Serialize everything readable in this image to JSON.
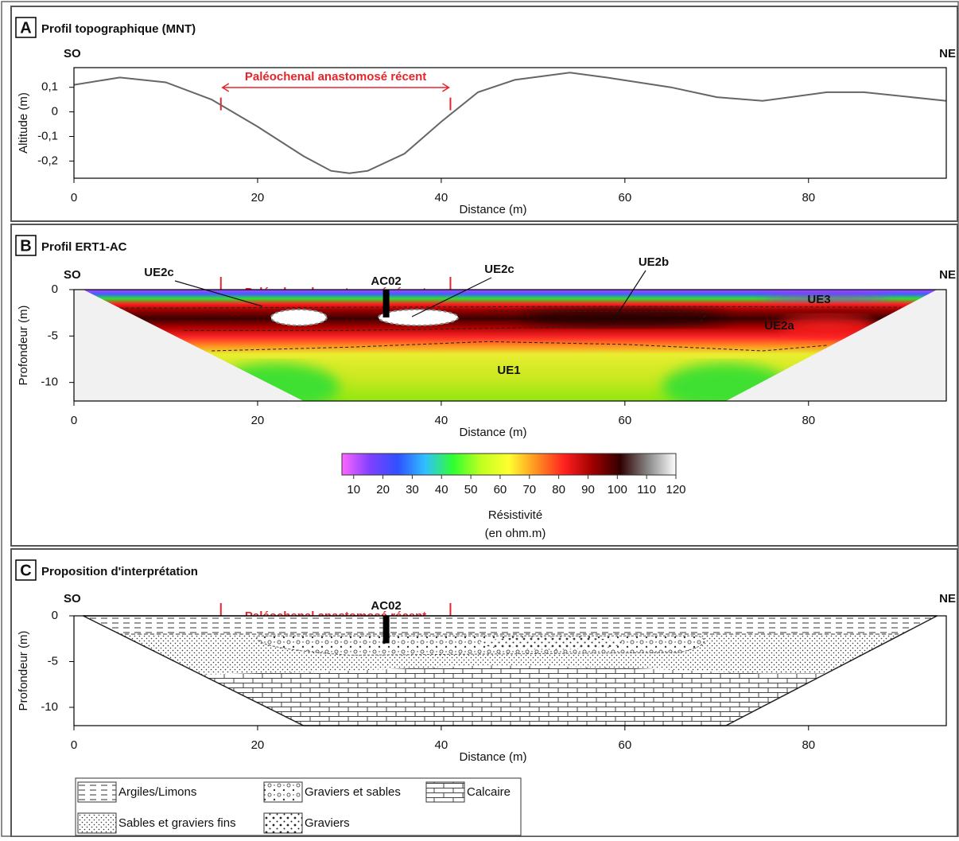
{
  "chart_data": [
    {
      "type": "line",
      "panel": "A",
      "title": "Profil topographique (MNT)",
      "left_label": "SO",
      "right_label": "NE",
      "annotation": "Paléochenal anastomosé récent",
      "annotation_range": [
        16,
        41
      ],
      "x_label": "Distance (m)",
      "y_label": "Altitude (m)",
      "color": "#666666",
      "x": [
        0,
        5,
        10,
        15,
        20,
        25,
        28,
        30,
        32,
        36,
        40,
        44,
        48,
        54,
        58,
        65,
        70,
        75,
        78,
        82,
        86,
        95
      ],
      "values": [
        0.11,
        0.14,
        0.12,
        0.05,
        -0.06,
        -0.18,
        -0.24,
        -0.25,
        -0.24,
        -0.17,
        -0.04,
        0.08,
        0.13,
        0.16,
        0.14,
        0.1,
        0.06,
        0.045,
        0.06,
        0.08,
        0.08,
        0.045
      ],
      "xlim": [
        0,
        95
      ],
      "ylim": [
        -0.27,
        0.18
      ],
      "xticks": [
        0,
        20,
        40,
        60,
        80
      ],
      "yticks": [
        {
          "value": 0.1,
          "label": "0,1"
        },
        0,
        {
          "value": -0.1,
          "label": "-0,1"
        },
        {
          "value": -0.2,
          "label": "-0,2"
        }
      ]
    },
    {
      "type": "resistivity",
      "panel": "B",
      "title": "Profil ERT1-AC",
      "left_label": "SO",
      "right_label": "NE",
      "annotation": "Paléochenal anastomosé récent",
      "annotation_range": [
        16,
        41
      ],
      "x_label": "Distance (m)",
      "y_label": "Profondeur (m)",
      "borehole": {
        "name": "AC02",
        "x": 34,
        "depth": -3
      },
      "units": [
        "UE2c",
        "UE2c",
        "UE2b",
        "UE3",
        "UE2a",
        "UE1"
      ],
      "xlim": [
        0,
        95
      ],
      "ylim": [
        -12,
        0
      ],
      "xticks": [
        0,
        20,
        40,
        60,
        80
      ],
      "yticks": [
        0,
        -5,
        -10
      ],
      "colorbar": {
        "lim": [
          6,
          120
        ],
        "ticks": [
          10,
          20,
          30,
          40,
          50,
          60,
          70,
          80,
          90,
          100,
          110,
          120
        ],
        "label": "Résistivité",
        "unit": "(en ohm.m)",
        "colors": [
          "#ff66ff",
          "#8040ff",
          "#3050ff",
          "#30c0ff",
          "#30ff30",
          "#c0ff20",
          "#ffff30",
          "#ff9020",
          "#ff2020",
          "#a00000",
          "#300000",
          "#888888",
          "#ffffff"
        ]
      }
    },
    {
      "type": "interpretation",
      "panel": "C",
      "title": "Proposition d'interprétation",
      "left_label": "SO",
      "right_label": "NE",
      "annotation": "Paléochenal anastomosé récent",
      "annotation_range": [
        16,
        41
      ],
      "x_label": "Distance (m)",
      "y_label": "Profondeur (m)",
      "borehole": {
        "name": "AC02",
        "x": 34,
        "depth": -3
      },
      "xlim": [
        0,
        95
      ],
      "ylim": [
        -12,
        0
      ],
      "xticks": [
        0,
        20,
        40,
        60,
        80
      ],
      "yticks": [
        0,
        -5,
        -10
      ],
      "legend": [
        "Argiles/Limons",
        "Graviers et sables",
        "Calcaire",
        "Sables et graviers fins",
        "Graviers"
      ]
    }
  ]
}
